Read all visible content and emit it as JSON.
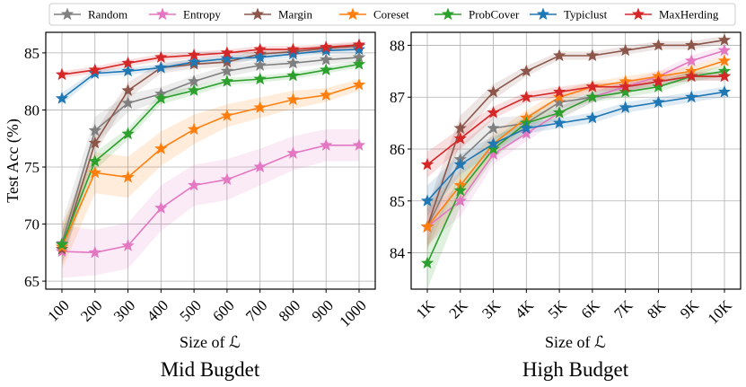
{
  "legend": {
    "placement": "top-center",
    "items": [
      {
        "name": "Random",
        "color": "#7f7f7f"
      },
      {
        "name": "Entropy",
        "color": "#e377c2"
      },
      {
        "name": "Margin",
        "color": "#8c564b"
      },
      {
        "name": "Coreset",
        "color": "#ff7f0e"
      },
      {
        "name": "ProbCover",
        "color": "#2ca02c"
      },
      {
        "name": "Typiclust",
        "color": "#1f77b4"
      },
      {
        "name": "MaxHerding",
        "color": "#d62728"
      }
    ]
  },
  "chart_data": [
    {
      "type": "line",
      "subtitle": "Mid Bugdet",
      "xlabel": "Size of ℒ",
      "ylabel": "Test Acc (%)",
      "grid": true,
      "ylim": [
        64.3,
        86.8
      ],
      "yticks": [
        65,
        70,
        75,
        80,
        85
      ],
      "ytick_labels": [
        "65",
        "70",
        "75",
        "80",
        "85"
      ],
      "categories": [
        "100",
        "200",
        "300",
        "400",
        "500",
        "600",
        "700",
        "800",
        "900",
        "1000"
      ],
      "series": [
        {
          "name": "Random",
          "color": "#7f7f7f",
          "values": [
            68.3,
            78.2,
            80.6,
            81.4,
            82.5,
            83.4,
            83.9,
            84.1,
            84.4,
            84.6
          ],
          "band": [
            1.8,
            1.2,
            0.8,
            0.6,
            0.5,
            0.5,
            0.4,
            0.4,
            0.4,
            0.4
          ]
        },
        {
          "name": "Entropy",
          "color": "#e377c2",
          "values": [
            67.6,
            67.5,
            68.1,
            71.4,
            73.4,
            73.9,
            75.0,
            76.2,
            76.9,
            76.9
          ],
          "band": [
            2.3,
            2.0,
            2.0,
            2.0,
            1.8,
            1.8,
            1.6,
            1.5,
            1.4,
            1.4
          ]
        },
        {
          "name": "Margin",
          "color": "#8c564b",
          "values": [
            67.8,
            77.1,
            81.7,
            83.7,
            84.0,
            84.2,
            84.9,
            85.1,
            85.4,
            85.6
          ],
          "band": [
            1.5,
            1.0,
            0.7,
            0.5,
            0.4,
            0.4,
            0.3,
            0.3,
            0.3,
            0.3
          ]
        },
        {
          "name": "Coreset",
          "color": "#ff7f0e",
          "values": [
            68.0,
            74.5,
            74.1,
            76.6,
            78.3,
            79.5,
            80.2,
            80.9,
            81.3,
            82.2
          ],
          "band": [
            2.0,
            1.8,
            1.8,
            1.5,
            1.3,
            1.0,
            0.9,
            0.8,
            0.6,
            0.5
          ]
        },
        {
          "name": "ProbCover",
          "color": "#2ca02c",
          "values": [
            68.2,
            75.5,
            77.9,
            81.0,
            81.7,
            82.5,
            82.7,
            83.0,
            83.5,
            84.0
          ],
          "band": [
            1.2,
            0.8,
            0.5,
            0.5,
            0.4,
            0.3,
            0.3,
            0.3,
            0.3,
            0.3
          ]
        },
        {
          "name": "Typiclust",
          "color": "#1f77b4",
          "values": [
            81.0,
            83.2,
            83.4,
            83.7,
            84.2,
            84.5,
            84.6,
            84.9,
            85.2,
            85.3
          ],
          "band": [
            0.5,
            0.3,
            0.3,
            0.3,
            0.3,
            0.3,
            0.3,
            0.3,
            0.3,
            0.3
          ]
        },
        {
          "name": "MaxHerding",
          "color": "#d62728",
          "values": [
            83.1,
            83.5,
            84.1,
            84.6,
            84.8,
            85.0,
            85.3,
            85.3,
            85.5,
            85.7
          ],
          "band": [
            0.3,
            0.3,
            0.3,
            0.3,
            0.3,
            0.3,
            0.3,
            0.3,
            0.3,
            0.3
          ]
        }
      ]
    },
    {
      "type": "line",
      "subtitle": "High Budget",
      "xlabel": "Size of ℒ",
      "ylabel": "",
      "grid": true,
      "ylim": [
        83.3,
        88.25
      ],
      "yticks": [
        84,
        85,
        86,
        87,
        88
      ],
      "ytick_labels": [
        "84",
        "85",
        "86",
        "87",
        "88"
      ],
      "categories": [
        "1K",
        "2K",
        "3K",
        "4K",
        "5K",
        "6K",
        "7K",
        "8K",
        "9K",
        "10K"
      ],
      "series": [
        {
          "name": "Random",
          "color": "#7f7f7f",
          "values": [
            84.5,
            85.8,
            86.4,
            86.5,
            86.9,
            87.0,
            87.2,
            87.3,
            87.4,
            87.4
          ],
          "band": [
            0.45,
            0.3,
            0.2,
            0.15,
            0.12,
            0.1,
            0.1,
            0.08,
            0.08,
            0.08
          ]
        },
        {
          "name": "Entropy",
          "color": "#e377c2",
          "values": [
            84.5,
            85.0,
            85.9,
            86.3,
            86.7,
            87.0,
            87.2,
            87.4,
            87.7,
            87.9
          ],
          "band": [
            0.35,
            0.3,
            0.2,
            0.15,
            0.12,
            0.1,
            0.1,
            0.1,
            0.1,
            0.1
          ]
        },
        {
          "name": "Margin",
          "color": "#8c564b",
          "values": [
            84.5,
            86.4,
            87.1,
            87.5,
            87.8,
            87.8,
            87.9,
            88.0,
            88.0,
            88.1
          ],
          "band": [
            0.4,
            0.25,
            0.15,
            0.1,
            0.08,
            0.08,
            0.08,
            0.08,
            0.08,
            0.08
          ]
        },
        {
          "name": "Coreset",
          "color": "#ff7f0e",
          "values": [
            84.5,
            85.3,
            86.1,
            86.6,
            87.0,
            87.2,
            87.3,
            87.4,
            87.5,
            87.7
          ],
          "band": [
            0.4,
            0.3,
            0.2,
            0.15,
            0.12,
            0.1,
            0.1,
            0.1,
            0.1,
            0.1
          ]
        },
        {
          "name": "ProbCover",
          "color": "#2ca02c",
          "values": [
            83.8,
            85.2,
            86.0,
            86.5,
            86.7,
            87.0,
            87.1,
            87.2,
            87.4,
            87.5
          ],
          "band": [
            0.5,
            0.3,
            0.2,
            0.15,
            0.12,
            0.1,
            0.1,
            0.1,
            0.1,
            0.1
          ]
        },
        {
          "name": "Typiclust",
          "color": "#1f77b4",
          "values": [
            85.0,
            85.7,
            86.1,
            86.4,
            86.5,
            86.6,
            86.8,
            86.9,
            87.0,
            87.1
          ],
          "band": [
            0.3,
            0.2,
            0.15,
            0.1,
            0.1,
            0.1,
            0.1,
            0.1,
            0.1,
            0.1
          ]
        },
        {
          "name": "MaxHerding",
          "color": "#d62728",
          "values": [
            85.7,
            86.2,
            86.7,
            87.0,
            87.1,
            87.2,
            87.2,
            87.3,
            87.4,
            87.4
          ],
          "band": [
            0.25,
            0.2,
            0.12,
            0.1,
            0.1,
            0.08,
            0.08,
            0.08,
            0.08,
            0.08
          ]
        }
      ]
    }
  ]
}
